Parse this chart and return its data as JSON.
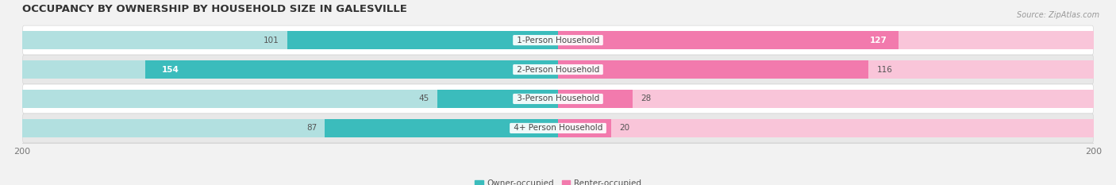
{
  "title": "OCCUPANCY BY OWNERSHIP BY HOUSEHOLD SIZE IN GALESVILLE",
  "source": "Source: ZipAtlas.com",
  "categories": [
    "1-Person Household",
    "2-Person Household",
    "3-Person Household",
    "4+ Person Household"
  ],
  "owner_values": [
    101,
    154,
    45,
    87
  ],
  "renter_values": [
    127,
    116,
    28,
    20
  ],
  "owner_color": "#3BBCBC",
  "renter_color": "#F27AAD",
  "owner_color_light": "#B2E0E0",
  "renter_color_light": "#F9C5D9",
  "max_val": 200,
  "bg_color": "#f2f2f2",
  "row_colors": [
    "#ffffff",
    "#e8e8e8",
    "#ffffff",
    "#e8e8e8"
  ],
  "legend_owner": "Owner-occupied",
  "legend_renter": "Renter-occupied",
  "title_fontsize": 9.5,
  "label_fontsize": 7.5,
  "tick_fontsize": 8,
  "source_fontsize": 7
}
